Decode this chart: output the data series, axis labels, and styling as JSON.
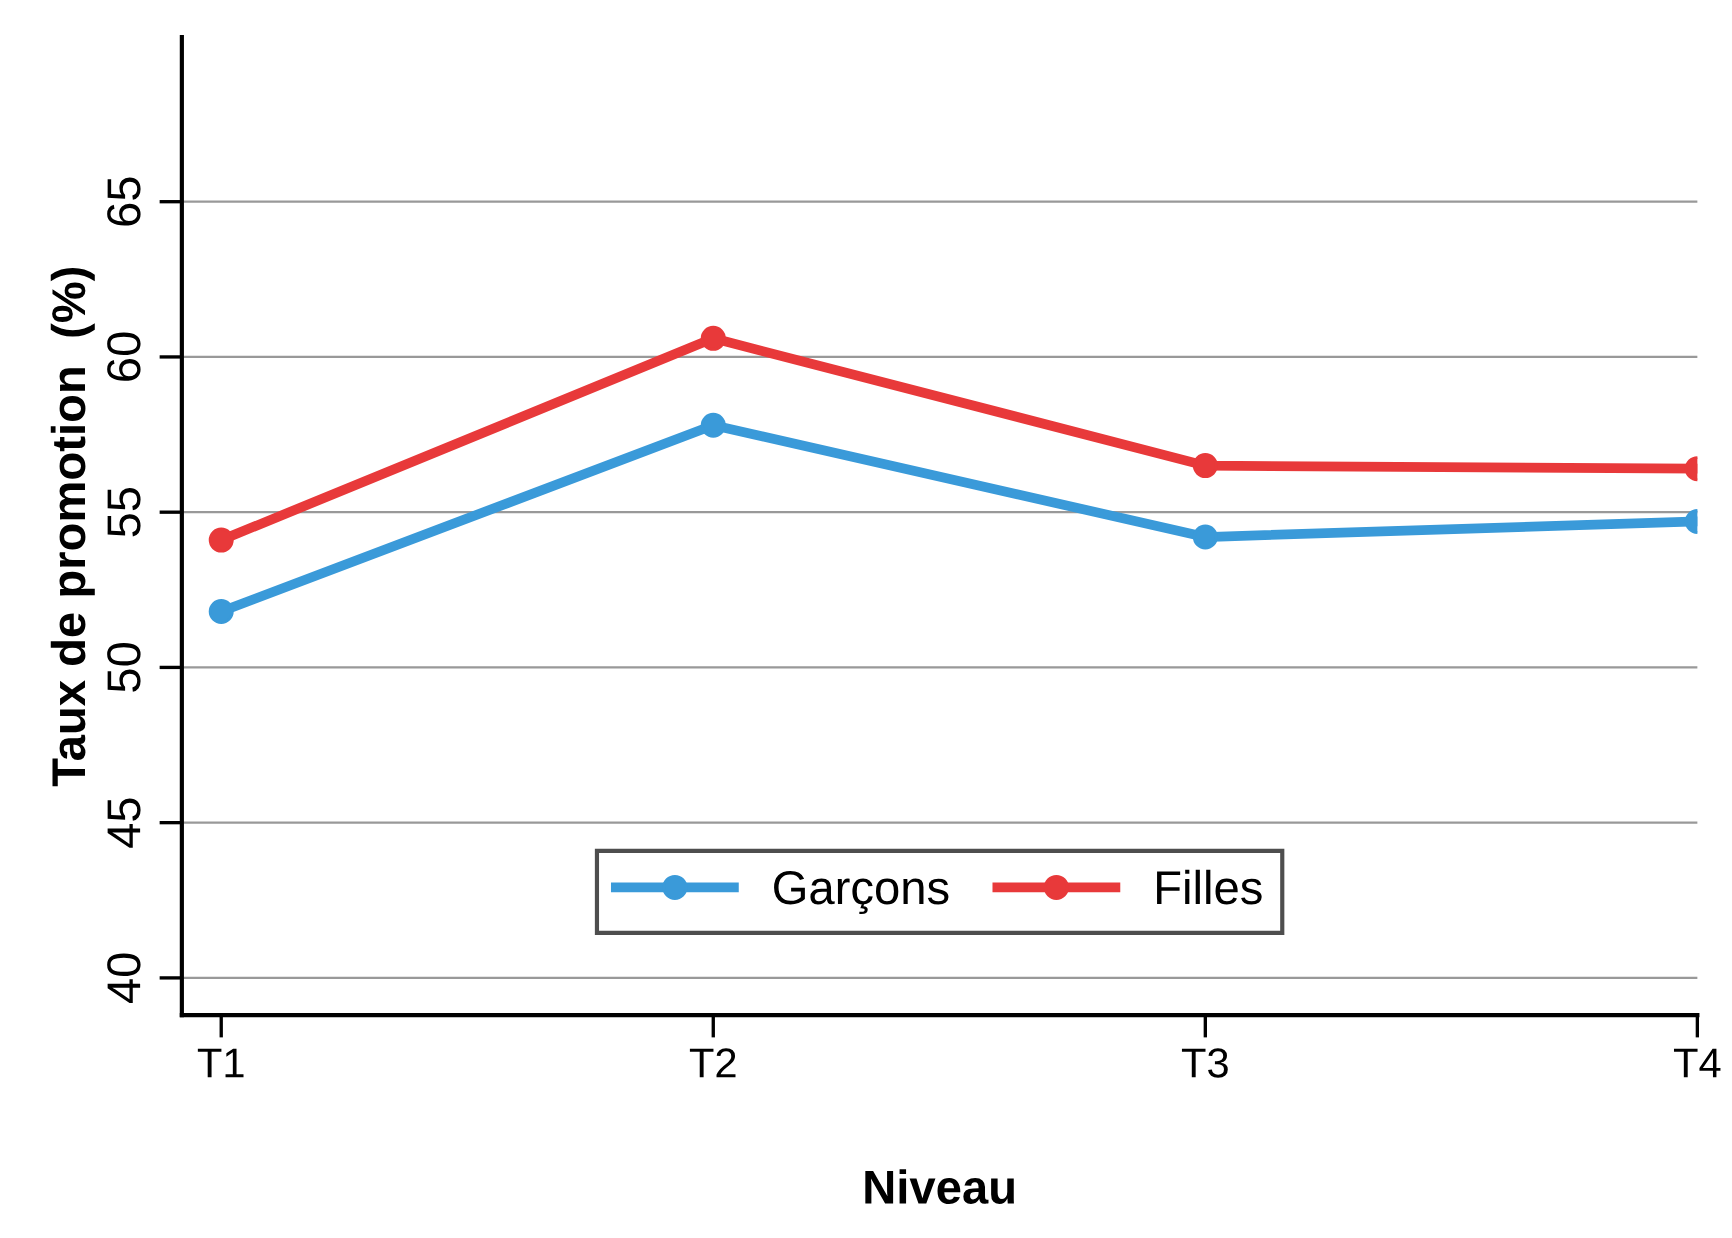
{
  "chart_data": {
    "type": "line",
    "xlabel": "Niveau",
    "ylabel": "Taux de promotion  (%)",
    "categories": [
      "T1",
      "T2",
      "T3",
      "T4"
    ],
    "series": [
      {
        "name": "Garçons",
        "color": "#3a9ad9",
        "values": [
          51.8,
          57.8,
          54.2,
          54.7
        ]
      },
      {
        "name": "Filles",
        "color": "#e8393a",
        "values": [
          54.1,
          60.6,
          56.5,
          56.4
        ]
      }
    ],
    "ylim": [
      38.8,
      70.3
    ],
    "yticks": [
      40,
      45,
      50,
      55,
      60,
      65
    ],
    "grid": "y",
    "legend": "bottom",
    "marker": "circle",
    "line_style": "solid"
  }
}
